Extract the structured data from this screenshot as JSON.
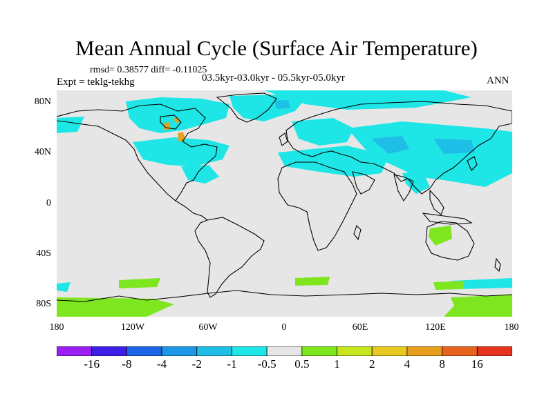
{
  "title": "Mean Annual Cycle (Surface Air Temperature)",
  "stats": "rmsd= 0.38577 diff= -0.11025",
  "experiment": "Expt = teklg-tekhg",
  "period": "03.5kyr-03.0kyr - 05.5kyr-05.0kyr",
  "season": "ANN",
  "axes": {
    "lat_ticks": [
      "80N",
      "40N",
      "0",
      "40S",
      "80S"
    ],
    "lon_ticks": [
      "180",
      "120W",
      "60W",
      "0",
      "60E",
      "120E",
      "180"
    ]
  },
  "colorbar": {
    "colors": [
      "#9b1ff2",
      "#3c1ee6",
      "#1e64e6",
      "#1e96e6",
      "#1ebee6",
      "#1ee6e6",
      "#e6e6e6",
      "#7de61e",
      "#c8e61e",
      "#e6c81e",
      "#e6a01e",
      "#e6641e",
      "#e6321e"
    ],
    "labels": [
      "-16",
      "-8",
      "-4",
      "-2",
      "-1",
      "-0.5",
      "0.5",
      "1",
      "2",
      "4",
      "8",
      "16"
    ]
  },
  "map_colors": {
    "background": "#e6e6e6",
    "cool": "#1ee6e6",
    "cooler": "#1ebee6",
    "warm": "#7de61e",
    "hot": "#e6a01e",
    "coast": "#000000"
  }
}
